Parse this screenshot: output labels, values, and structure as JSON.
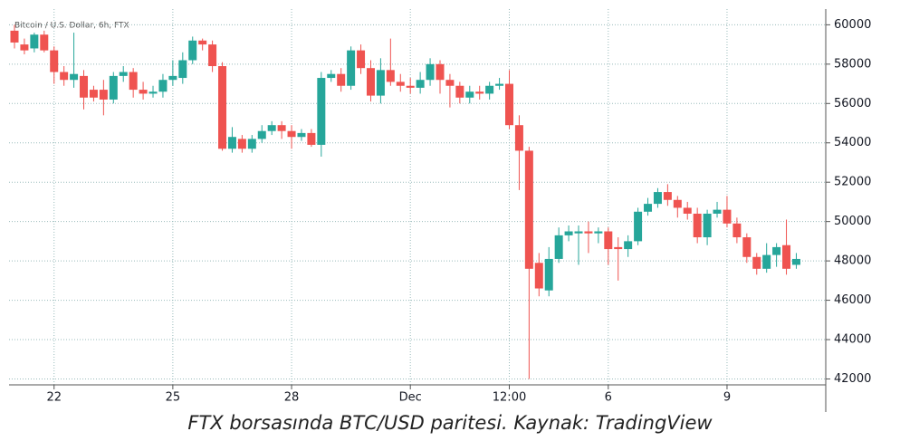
{
  "chart_data": {
    "type": "candlestick",
    "title": "Bitcoin / U.S. Dollar, 6h, FTX",
    "caption": "FTX borsasında BTC/USD paritesi. Kaynak: TradingView",
    "up_color": "#26a69a",
    "down_color": "#ef5350",
    "grid": true,
    "ylim": [
      41700,
      60800
    ],
    "yticks": [
      42000,
      44000,
      46000,
      48000,
      50000,
      52000,
      54000,
      56000,
      58000,
      60000
    ],
    "categories": [
      null,
      null,
      null,
      null,
      "22",
      null,
      null,
      null,
      null,
      null,
      null,
      null,
      null,
      null,
      null,
      null,
      "25",
      null,
      null,
      null,
      null,
      null,
      null,
      null,
      null,
      null,
      null,
      null,
      "28",
      null,
      null,
      null,
      null,
      null,
      null,
      null,
      null,
      null,
      null,
      null,
      "Dec",
      null,
      null,
      null,
      null,
      null,
      null,
      null,
      null,
      null,
      "12:00",
      null,
      null,
      null,
      null,
      null,
      null,
      null,
      null,
      null,
      "6",
      null,
      null,
      null,
      null,
      null,
      null,
      null,
      null,
      null,
      null,
      null,
      "9",
      null,
      null,
      null,
      null,
      null,
      null,
      null
    ],
    "open": [
      59700,
      59000,
      58800,
      59500,
      58700,
      57600,
      57200,
      57400,
      56700,
      56700,
      56200,
      57400,
      57600,
      56700,
      56500,
      56600,
      57200,
      57300,
      58200,
      59200,
      59000,
      57900,
      53700,
      54200,
      53700,
      54200,
      54600,
      54900,
      54600,
      54300,
      54500,
      53900,
      57300,
      57500,
      56900,
      58700,
      57800,
      56400,
      57700,
      57100,
      56900,
      56800,
      57200,
      58000,
      57200,
      56900,
      56300,
      56600,
      56500,
      56900,
      57000,
      54900,
      53600,
      47900,
      46500,
      48100,
      49300,
      49400,
      49500,
      49400,
      49500,
      48700,
      48600,
      49000,
      50500,
      50900,
      51500,
      51100,
      50700,
      50400,
      49200,
      50400,
      50600,
      49900,
      49200,
      48200,
      47600,
      48300,
      48800,
      47800
    ],
    "high": [
      60000,
      59300,
      59600,
      59700,
      58900,
      57900,
      59600,
      57700,
      56900,
      57200,
      57600,
      57900,
      57800,
      57100,
      56900,
      57500,
      58200,
      58600,
      59400,
      59300,
      59200,
      58100,
      54800,
      54400,
      54400,
      54900,
      55100,
      55100,
      54900,
      54700,
      54700,
      57600,
      57700,
      57800,
      58900,
      59000,
      58200,
      58300,
      59300,
      57500,
      57300,
      57600,
      58300,
      58200,
      57500,
      57100,
      56900,
      56900,
      57100,
      57300,
      57700,
      55400,
      53800,
      48400,
      48700,
      49700,
      49800,
      49800,
      50000,
      49700,
      49700,
      49200,
      49300,
      50700,
      51200,
      51700,
      51900,
      51300,
      51000,
      50700,
      50600,
      51000,
      51300,
      50200,
      49400,
      48400,
      48900,
      48900,
      50100,
      48400
    ],
    "low": [
      58800,
      58500,
      58600,
      58600,
      57000,
      56900,
      56800,
      55700,
      56100,
      55400,
      56000,
      57100,
      56300,
      56200,
      56300,
      56300,
      56900,
      57000,
      58000,
      58700,
      57600,
      53600,
      53500,
      53500,
      53500,
      54000,
      54400,
      54200,
      53700,
      54100,
      53800,
      53300,
      57100,
      56600,
      56700,
      57500,
      56100,
      56000,
      56900,
      56600,
      56500,
      56500,
      56900,
      56500,
      55800,
      56000,
      56000,
      56200,
      56200,
      56700,
      54700,
      51600,
      42000,
      46200,
      46200,
      47900,
      49000,
      47800,
      48400,
      48900,
      47800,
      47000,
      48200,
      48800,
      50300,
      50700,
      50800,
      50200,
      50100,
      48900,
      48800,
      50200,
      49700,
      48900,
      47900,
      47300,
      47400,
      47700,
      47300,
      47600
    ],
    "close": [
      59100,
      58700,
      59500,
      58700,
      57600,
      57200,
      57500,
      56300,
      56300,
      56200,
      57400,
      57600,
      56700,
      56500,
      56600,
      57200,
      57400,
      58200,
      59200,
      59000,
      57900,
      53700,
      54300,
      53700,
      54200,
      54600,
      54900,
      54600,
      54300,
      54500,
      53900,
      57300,
      57500,
      56900,
      58700,
      57800,
      56400,
      57700,
      57100,
      56900,
      56800,
      57200,
      58000,
      57200,
      56900,
      56300,
      56600,
      56500,
      56900,
      57000,
      54900,
      53600,
      47600,
      46600,
      48100,
      49300,
      49500,
      49500,
      49400,
      49500,
      48600,
      48600,
      49000,
      50500,
      50900,
      51500,
      51100,
      50700,
      50400,
      49200,
      50400,
      50600,
      49900,
      49200,
      48200,
      47600,
      48300,
      48700,
      47600,
      48100
    ]
  }
}
